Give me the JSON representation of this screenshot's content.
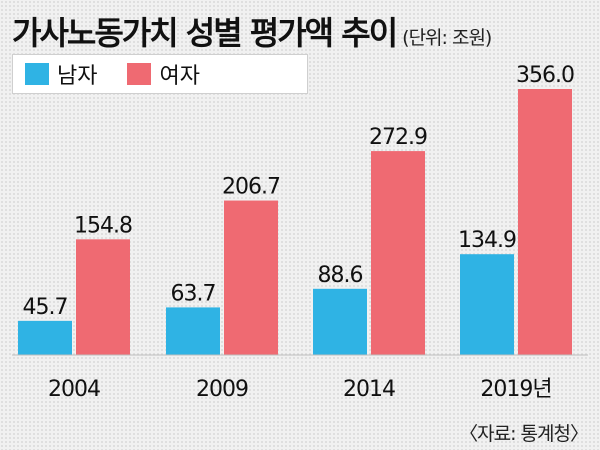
{
  "header": {
    "title": "가사노동가치 성별 평가액 추이",
    "unit": "(단위: 조원)"
  },
  "footer": {
    "source": "〈자료: 통계청〉"
  },
  "colors": {
    "male": "#2fb3e4",
    "female": "#ef6a72"
  },
  "chart_data": {
    "type": "bar",
    "title": "가사노동가치 성별 평가액 추이",
    "unit": "(단위: 조원)",
    "categories": [
      "2004",
      "2009",
      "2014",
      "2019년"
    ],
    "series": [
      {
        "name": "남자",
        "values": [
          45.7,
          63.7,
          88.6,
          134.9
        ]
      },
      {
        "name": "여자",
        "values": [
          154.8,
          206.7,
          272.9,
          356.0
        ]
      }
    ],
    "value_labels": [
      [
        "45.7",
        "63.7",
        "88.6",
        "134.9"
      ],
      [
        "154.8",
        "206.7",
        "272.9",
        "356.0"
      ]
    ],
    "ylim": [
      0,
      356.0
    ],
    "grid": false,
    "legend": "top-left"
  }
}
